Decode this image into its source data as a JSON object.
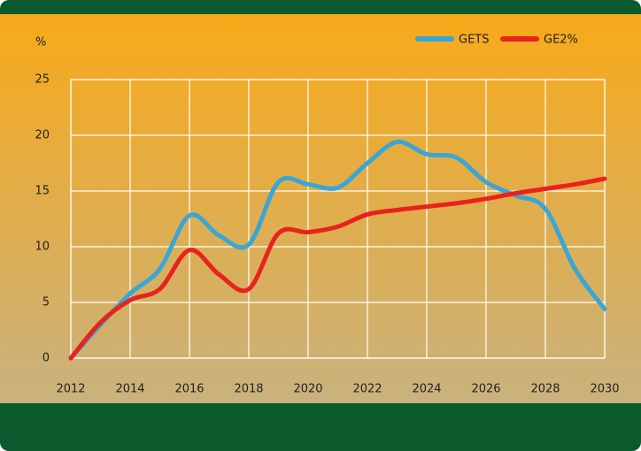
{
  "chart_data": {
    "type": "line",
    "y_label": "%",
    "x": [
      2012,
      2013,
      2014,
      2015,
      2016,
      2017,
      2018,
      2019,
      2020,
      2021,
      2022,
      2023,
      2024,
      2025,
      2026,
      2027,
      2028,
      2029,
      2030
    ],
    "series": [
      {
        "name": "GETS",
        "color": "#3aa6d6",
        "values": [
          0,
          3.0,
          5.8,
          8,
          12.8,
          11,
          10.2,
          15.8,
          15.6,
          15.3,
          17.5,
          19.4,
          18.3,
          18.0,
          15.8,
          14.6,
          13.4,
          8,
          4.4
        ]
      },
      {
        "name": "GE2%",
        "color": "#e8231e",
        "values": [
          0,
          3.2,
          5.2,
          6.2,
          9.7,
          7.5,
          6.2,
          11.2,
          11.3,
          11.8,
          12.9,
          13.3,
          13.6,
          13.9,
          14.3,
          14.8,
          15.2,
          15.6,
          16.1
        ]
      }
    ],
    "xlim": [
      2012,
      2030
    ],
    "xticks": [
      2012,
      2014,
      2016,
      2018,
      2020,
      2022,
      2024,
      2026,
      2028,
      2030
    ],
    "ylim": [
      0,
      25
    ],
    "yticks": [
      0,
      5,
      10,
      15,
      20,
      25
    ],
    "grid": true,
    "legend": "top-right"
  }
}
